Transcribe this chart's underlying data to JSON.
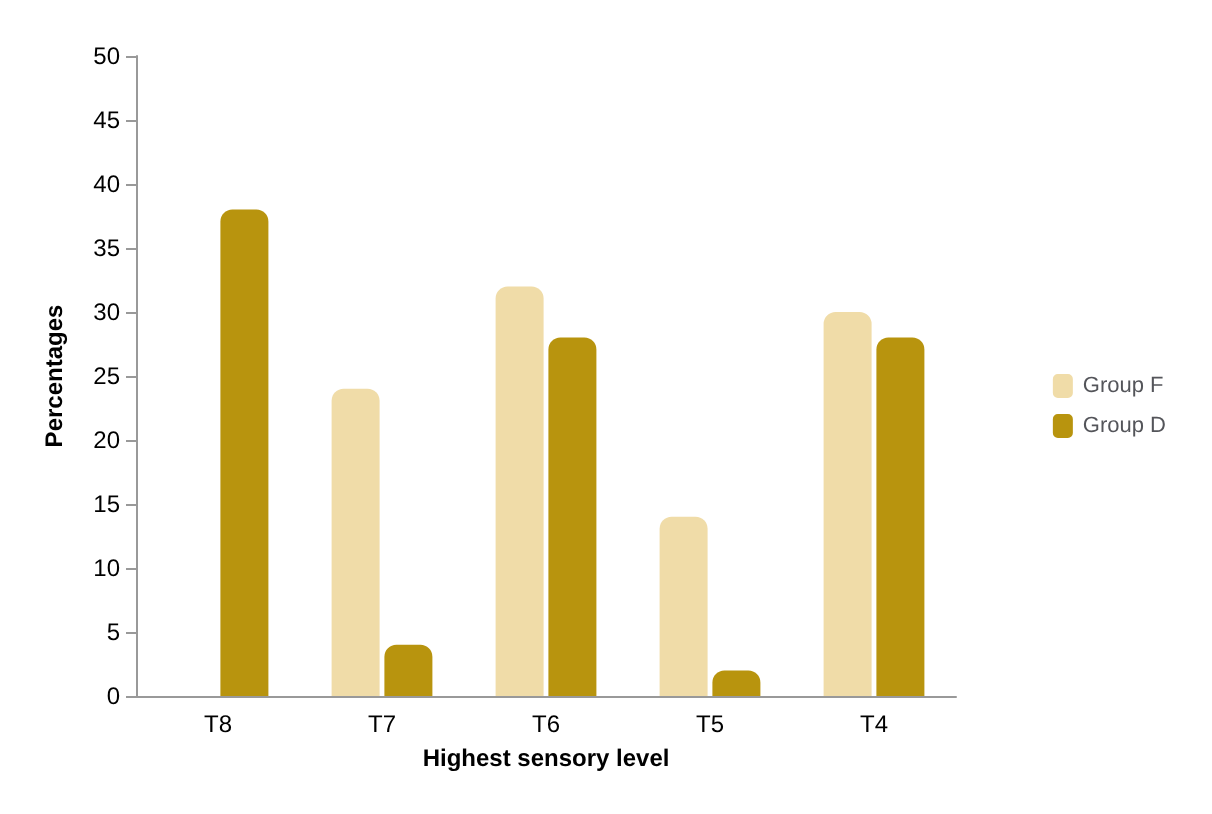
{
  "chart_data": {
    "type": "bar",
    "xlabel": "Highest sensory level",
    "ylabel": "Percentages",
    "categories": [
      "T8",
      "T7",
      "T6",
      "T5",
      "T4"
    ],
    "series": [
      {
        "name": "Group F",
        "color": "#f0dca8",
        "values": [
          0,
          24,
          32,
          14,
          30
        ]
      },
      {
        "name": "Group D",
        "color": "#b8940e",
        "values": [
          38,
          4,
          28,
          2,
          28
        ]
      }
    ],
    "ylim": [
      0,
      50
    ],
    "yticks": [
      0,
      5,
      10,
      15,
      20,
      25,
      30,
      35,
      40,
      45,
      50
    ],
    "legend": "right",
    "grid": false
  }
}
